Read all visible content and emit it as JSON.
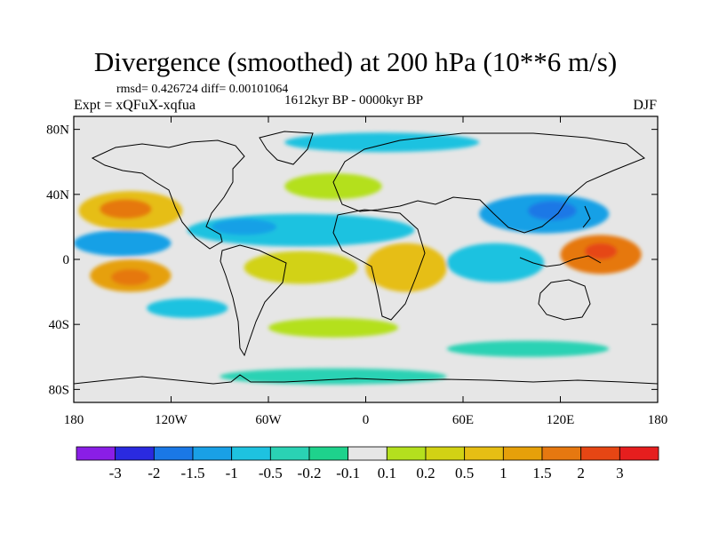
{
  "title": "Divergence (smoothed) at 200 hPa (10**6 m/s)",
  "stats": "rmsd= 0.426724  diff= 0.00101064",
  "experiment": "Expt = xQFuX-xqfua",
  "period": "1612kyr BP - 0000kyr BP",
  "season": "DJF",
  "y_axis": {
    "labels": [
      "80N",
      "40N",
      "0",
      "40S",
      "80S"
    ],
    "values": [
      80,
      40,
      0,
      -40,
      -80
    ]
  },
  "x_axis": {
    "labels": [
      "180",
      "120W",
      "60W",
      "0",
      "60E",
      "120E",
      "180"
    ],
    "values": [
      -180,
      -120,
      -60,
      0,
      60,
      120,
      180
    ]
  },
  "colorbar": {
    "colors": [
      "#8a1ee6",
      "#2a2ae0",
      "#1a78e6",
      "#19a0e6",
      "#1ec2e0",
      "#2ad2b4",
      "#1ed28c",
      "#e6e6e6",
      "#b4e01e",
      "#d2d214",
      "#e6be14",
      "#e6a00a",
      "#e67810",
      "#e64614",
      "#e61e1e"
    ],
    "labels": [
      "-3",
      "-2",
      "-1.5",
      "-1",
      "-0.5",
      "-0.2",
      "-0.1",
      "0.1",
      "0.2",
      "0.5",
      "1",
      "1.5",
      "2",
      "3"
    ]
  },
  "features": [
    {
      "name": "n-pacific-positive",
      "lon": -145,
      "lat": 30,
      "rx": 32,
      "ry": 12,
      "color": "#e6be14"
    },
    {
      "name": "n-pacific-positive-core",
      "lon": -148,
      "lat": 31,
      "rx": 16,
      "ry": 6,
      "color": "#e67810"
    },
    {
      "name": "n-pacific-negative",
      "lon": -150,
      "lat": 10,
      "rx": 30,
      "ry": 8,
      "color": "#19a0e6"
    },
    {
      "name": "s-pacific-positive",
      "lon": -145,
      "lat": -10,
      "rx": 25,
      "ry": 10,
      "color": "#e6a00a"
    },
    {
      "name": "s-pacific-positive-core",
      "lon": -145,
      "lat": -11,
      "rx": 12,
      "ry": 5,
      "color": "#e67810"
    },
    {
      "name": "tropical-atlantic-negative",
      "lon": -40,
      "lat": 18,
      "rx": 70,
      "ry": 10,
      "color": "#1ec2e0"
    },
    {
      "name": "tropical-atlantic-negative-core",
      "lon": -75,
      "lat": 20,
      "rx": 20,
      "ry": 5,
      "color": "#19a0e6"
    },
    {
      "name": "s-america-positive",
      "lon": -40,
      "lat": -5,
      "rx": 35,
      "ry": 10,
      "color": "#d2d214"
    },
    {
      "name": "west-pacific-positive",
      "lon": 145,
      "lat": 3,
      "rx": 25,
      "ry": 12,
      "color": "#e67810"
    },
    {
      "name": "west-pacific-positive-core",
      "lon": 145,
      "lat": 5,
      "rx": 10,
      "ry": 5,
      "color": "#e64614"
    },
    {
      "name": "asia-negative",
      "lon": 110,
      "lat": 28,
      "rx": 40,
      "ry": 12,
      "color": "#19a0e6"
    },
    {
      "name": "asia-negative-core",
      "lon": 115,
      "lat": 30,
      "rx": 15,
      "ry": 6,
      "color": "#1a78e6"
    },
    {
      "name": "indian-ocean-negative",
      "lon": 80,
      "lat": -2,
      "rx": 30,
      "ry": 12,
      "color": "#1ec2e0"
    },
    {
      "name": "africa-positive",
      "lon": 25,
      "lat": -5,
      "rx": 25,
      "ry": 15,
      "color": "#e6be14"
    },
    {
      "name": "north-atlantic-positive",
      "lon": -20,
      "lat": 45,
      "rx": 30,
      "ry": 8,
      "color": "#b4e01e"
    },
    {
      "name": "arctic-negative",
      "lon": 10,
      "lat": 72,
      "rx": 60,
      "ry": 6,
      "color": "#1ec2e0"
    },
    {
      "name": "southern-ocean-positive",
      "lon": -20,
      "lat": -42,
      "rx": 40,
      "ry": 6,
      "color": "#b4e01e"
    },
    {
      "name": "southern-ocean-negative",
      "lon": 100,
      "lat": -55,
      "rx": 50,
      "ry": 5,
      "color": "#2ad2b4"
    },
    {
      "name": "south-pacific-negative",
      "lon": -110,
      "lat": -30,
      "rx": 25,
      "ry": 6,
      "color": "#1ec2e0"
    },
    {
      "name": "antarctic-negative",
      "lon": -20,
      "lat": -72,
      "rx": 70,
      "ry": 5,
      "color": "#2ad2b4"
    }
  ]
}
